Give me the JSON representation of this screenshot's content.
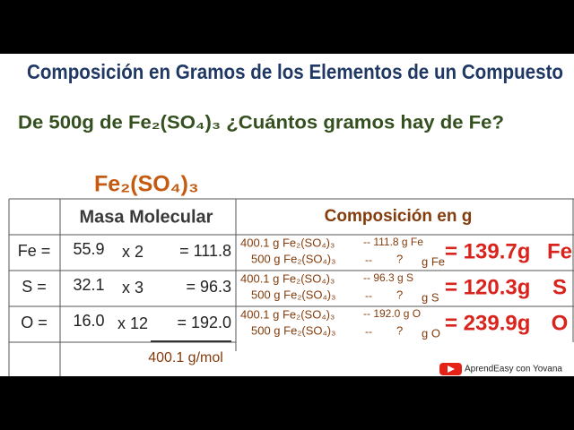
{
  "header": {
    "title": "Composición en Gramos de los Elementos de un Compuesto",
    "question": "De 500g de Fe₂(SO₄)₃ ¿Cuántos gramos hay de Fe?"
  },
  "formula": "Fe₂(SO₄)₃",
  "table": {
    "headers": [
      "Masa Molecular",
      "Composición en g"
    ],
    "rows": [
      {
        "element": "Fe =",
        "mass": "55.9",
        "times": "x 2",
        "product": "= 111.8",
        "ratio_top": "400.1 g Fe₂(SO₄)₃",
        "ratio_top_value": "-- 111.8 g Fe",
        "ratio_bottom": "500 g Fe₂(SO₄)₃",
        "ratio_bottom_dash": "--",
        "unknown": "?",
        "unknown_unit": "g Fe",
        "result": "= 139.7g",
        "result_element": "Fe"
      },
      {
        "element": "S =",
        "mass": "32.1",
        "times": "x 3",
        "product": "= 96.3",
        "ratio_top": "400.1 g Fe₂(SO₄)₃",
        "ratio_top_value": "-- 96.3 g S",
        "ratio_bottom": "500 g Fe₂(SO₄)₃",
        "ratio_bottom_dash": "--",
        "unknown": "?",
        "unknown_unit": "g S",
        "result": "= 120.3g",
        "result_element": "S"
      },
      {
        "element": "O =",
        "mass": "16.0",
        "times": "x 12",
        "product": "= 192.0",
        "ratio_top": "400.1 g Fe₂(SO₄)₃",
        "ratio_top_value": "-- 192.0 g O",
        "ratio_bottom": "500 g Fe₂(SO₄)₃",
        "ratio_bottom_dash": "--",
        "unknown": "?",
        "unknown_unit": "g O",
        "result": "= 239.9g",
        "result_element": "O"
      }
    ],
    "total": "400.1 g/mol"
  },
  "logo": "AprendEasy con Yovana"
}
